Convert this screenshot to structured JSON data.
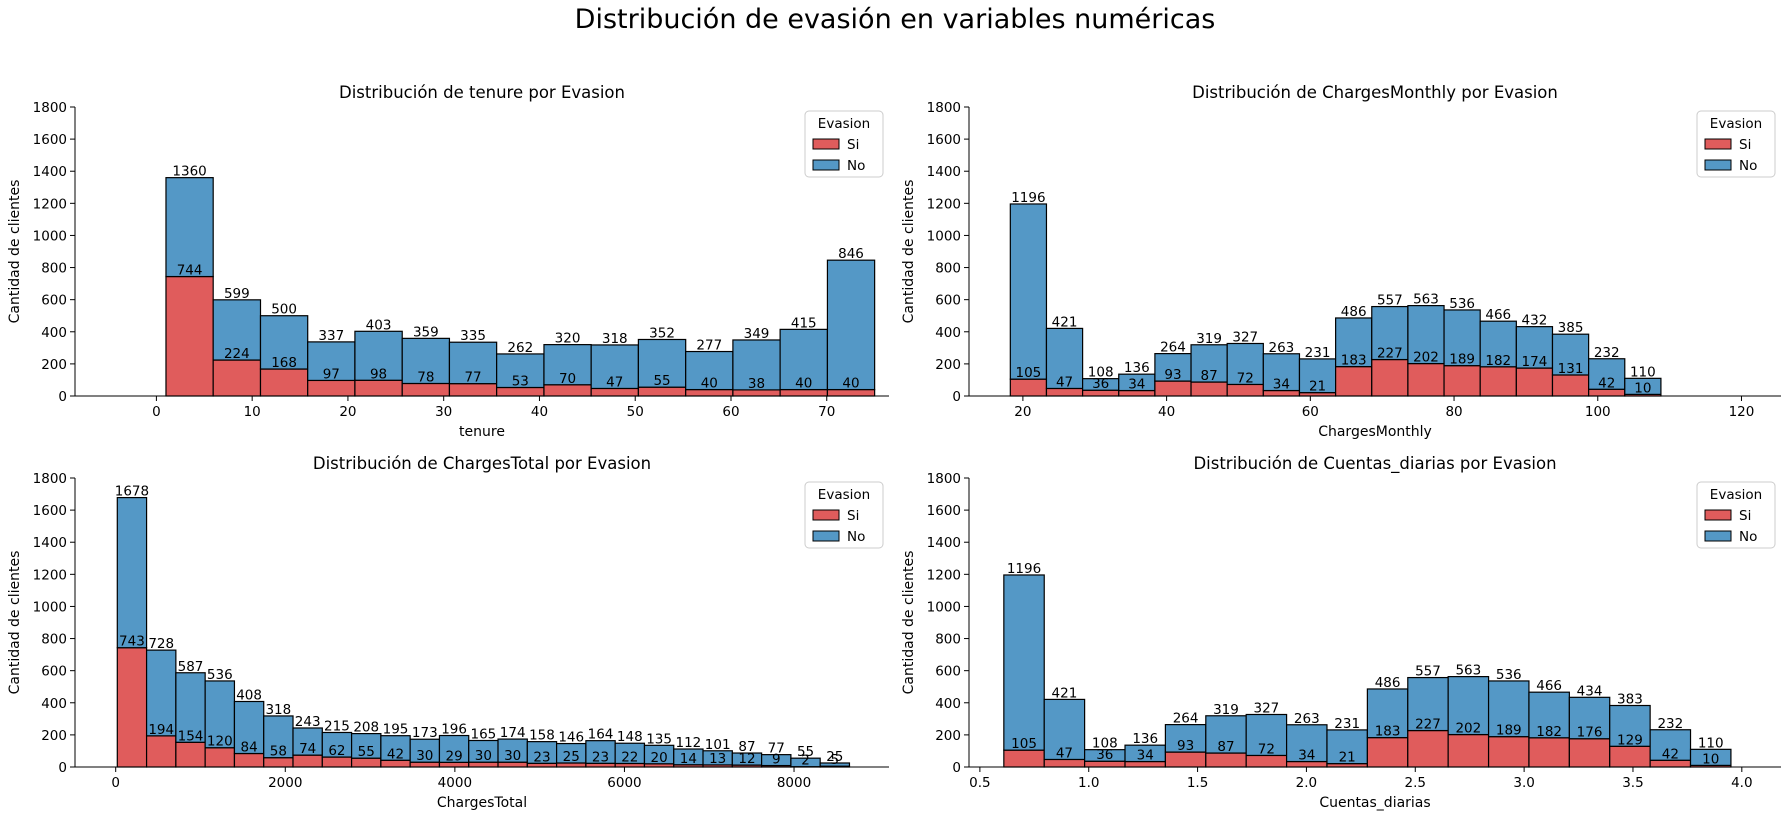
{
  "suptitle": "Distribución de evasión en variables numéricas",
  "colors": {
    "si": "#e05c5c",
    "no": "#5498c6",
    "edge": "#000000"
  },
  "chart_data": [
    {
      "type": "bar",
      "title": "Distribución de tenure por Evasion",
      "xlabel": "tenure",
      "ylabel": "Cantidad de clientes",
      "xlim": [
        -8.5,
        76.5
      ],
      "ylim": [
        0,
        1800
      ],
      "xticks": [
        0,
        10,
        20,
        30,
        40,
        50,
        60,
        70
      ],
      "yticks": [
        0,
        200,
        400,
        600,
        800,
        1000,
        1200,
        1400,
        1600,
        1800
      ],
      "legend": {
        "title": "Evasion",
        "entries": [
          "Si",
          "No"
        ],
        "placement": "top-right"
      },
      "bin_edges": [
        1,
        5.93,
        10.87,
        15.8,
        20.73,
        25.67,
        30.6,
        35.53,
        40.47,
        45.4,
        50.33,
        55.27,
        60.2,
        65.13,
        70.07,
        75
      ],
      "series": [
        {
          "name": "Si",
          "values": [
            744,
            224,
            168,
            97,
            98,
            78,
            77,
            53,
            70,
            47,
            55,
            40,
            38,
            40,
            40
          ]
        },
        {
          "name": "No",
          "values": [
            616,
            375,
            332,
            240,
            305,
            281,
            258,
            209,
            250,
            271,
            297,
            237,
            311,
            375,
            806
          ]
        }
      ],
      "totals": [
        1360,
        599,
        500,
        337,
        403,
        359,
        335,
        262,
        320,
        318,
        352,
        277,
        349,
        415,
        846
      ],
      "labels_si": [
        "744",
        "224",
        "168",
        "97",
        "98",
        "78",
        "77",
        "53",
        "70",
        "47",
        "55",
        "40",
        "38",
        "40",
        "40"
      ],
      "labels_total": [
        "1360",
        "599",
        "500",
        "337",
        "403",
        "359",
        "335",
        "262",
        "320",
        "318",
        "352",
        "277",
        "349",
        "415",
        "846"
      ]
    },
    {
      "type": "bar",
      "title": "Distribución de ChargesMonthly por Evasion",
      "xlabel": "ChargesMonthly",
      "ylabel": "Cantidad de clientes",
      "xlim": [
        12.5,
        125.5
      ],
      "ylim": [
        0,
        1800
      ],
      "xticks": [
        20,
        40,
        60,
        80,
        100,
        120
      ],
      "yticks": [
        0,
        200,
        400,
        600,
        800,
        1000,
        1200,
        1400,
        1600,
        1800
      ],
      "legend": {
        "title": "Evasion",
        "entries": [
          "Si",
          "No"
        ],
        "placement": "top-right"
      },
      "bin_edges": [
        18.25,
        23.28,
        28.31,
        33.34,
        38.37,
        43.4,
        48.43,
        53.46,
        58.49,
        63.52,
        68.55,
        73.58,
        78.61,
        83.64,
        88.67,
        93.7,
        98.73,
        103.76,
        108.79,
        113.82,
        118.75
      ],
      "series": [
        {
          "name": "Si",
          "values": [
            105,
            47,
            36,
            34,
            93,
            87,
            72,
            34,
            21,
            183,
            227,
            202,
            189,
            182,
            174,
            131,
            42,
            10
          ]
        },
        {
          "name": "No",
          "values": [
            1091,
            374,
            72,
            102,
            171,
            232,
            255,
            229,
            210,
            303,
            330,
            361,
            347,
            284,
            258,
            254,
            190,
            100
          ]
        }
      ],
      "totals": [
        1196,
        421,
        108,
        136,
        264,
        319,
        327,
        263,
        231,
        486,
        557,
        563,
        536,
        466,
        432,
        385,
        232,
        110
      ],
      "labels_si": [
        "105",
        "47",
        "36",
        "34",
        "93",
        "87",
        "72",
        "34",
        "21",
        "183",
        "227",
        "202",
        "189",
        "182",
        "174",
        "131",
        "42",
        "10"
      ],
      "labels_total": [
        "1196",
        "421",
        "108",
        "136",
        "264",
        "319",
        "327",
        "263",
        "231",
        "486",
        "557",
        "563",
        "536",
        "466",
        "432",
        "385",
        "232",
        "110"
      ]
    },
    {
      "type": "bar",
      "title": "Distribución de ChargesTotal por Evasion",
      "xlabel": "ChargesTotal",
      "ylabel": "Cantidad de clientes",
      "xlim": [
        -480,
        9120
      ],
      "ylim": [
        0,
        1800
      ],
      "xticks": [
        0,
        2000,
        4000,
        6000,
        8000
      ],
      "yticks": [
        0,
        200,
        400,
        600,
        800,
        1000,
        1200,
        1400,
        1600,
        1800
      ],
      "legend": {
        "title": "Evasion",
        "entries": [
          "Si",
          "No"
        ],
        "placement": "top-right"
      },
      "bin_edges": [
        18.8,
        364.2,
        709.6,
        1055,
        1400.4,
        1745.8,
        2091.2,
        2436.6,
        2782,
        3127.4,
        3472.8,
        3818.2,
        4163.6,
        4509,
        4854.4,
        5199.8,
        5545.2,
        5890.6,
        6236,
        6581.4,
        6926.8,
        7272.2,
        7617.6,
        7963,
        8308.4,
        8653.8
      ],
      "series": [
        {
          "name": "Si",
          "values": [
            743,
            194,
            154,
            120,
            84,
            58,
            74,
            62,
            55,
            42,
            30,
            29,
            30,
            30,
            23,
            25,
            23,
            22,
            20,
            14,
            13,
            12,
            9,
            2,
            5
          ]
        },
        {
          "name": "No",
          "values": [
            935,
            534,
            433,
            416,
            324,
            260,
            169,
            153,
            153,
            153,
            143,
            167,
            135,
            144,
            135,
            121,
            141,
            126,
            115,
            98,
            88,
            75,
            68,
            53,
            20
          ]
        }
      ],
      "totals": [
        1678,
        728,
        587,
        536,
        408,
        318,
        243,
        215,
        208,
        195,
        173,
        196,
        165,
        174,
        158,
        146,
        164,
        148,
        135,
        112,
        101,
        87,
        77,
        55,
        25
      ],
      "labels_si": [
        "743",
        "194",
        "154",
        "120",
        "84",
        "58",
        "74",
        "62",
        "55",
        "42",
        "30",
        "29",
        "30",
        "30",
        "23",
        "25",
        "23",
        "22",
        "20",
        "14",
        "13",
        "12",
        "9",
        "2",
        "5"
      ],
      "labels_total": [
        "1678",
        "728",
        "587",
        "536",
        "408",
        "318",
        "243",
        "215",
        "208",
        "195",
        "173",
        "196",
        "165",
        "174",
        "158",
        "146",
        "164",
        "148",
        "135",
        "112",
        "101",
        "87",
        "77",
        "55",
        "25"
      ]
    },
    {
      "type": "bar",
      "title": "Distribución de Cuentas_diarias por Evasion",
      "xlabel": "Cuentas_diarias",
      "ylabel": "Cantidad de clientes",
      "xlim": [
        0.45,
        4.18
      ],
      "ylim": [
        0,
        1800
      ],
      "xticks": [
        0.5,
        1.0,
        1.5,
        2.0,
        2.5,
        3.0,
        3.5,
        4.0
      ],
      "xtick_labels": [
        "0.5",
        "1.0",
        "1.5",
        "2.0",
        "2.5",
        "3.0",
        "3.5",
        "4.0"
      ],
      "yticks": [
        0,
        200,
        400,
        600,
        800,
        1000,
        1200,
        1400,
        1600,
        1800
      ],
      "legend": {
        "title": "Evasion",
        "entries": [
          "Si",
          "No"
        ],
        "placement": "top-right"
      },
      "bin_edges": [
        0.61,
        0.7956,
        0.9811,
        1.1667,
        1.3522,
        1.5378,
        1.7233,
        1.9089,
        2.0944,
        2.28,
        2.4656,
        2.6511,
        2.8367,
        3.0222,
        3.2078,
        3.3933,
        3.5789,
        3.7644,
        3.95
      ],
      "series": [
        {
          "name": "Si",
          "values": [
            105,
            47,
            36,
            34,
            93,
            87,
            72,
            34,
            21,
            183,
            227,
            202,
            189,
            182,
            176,
            129,
            42,
            10
          ]
        },
        {
          "name": "No",
          "values": [
            1091,
            374,
            72,
            102,
            171,
            232,
            255,
            229,
            210,
            303,
            330,
            361,
            347,
            284,
            258,
            254,
            190,
            100
          ]
        }
      ],
      "totals": [
        1196,
        421,
        108,
        136,
        264,
        319,
        327,
        263,
        231,
        486,
        557,
        563,
        536,
        466,
        434,
        383,
        232,
        110
      ],
      "labels_si": [
        "105",
        "47",
        "36",
        "34",
        "93",
        "87",
        "72",
        "34",
        "21",
        "183",
        "227",
        "202",
        "189",
        "182",
        "176",
        "129",
        "42",
        "10"
      ],
      "labels_total": [
        "1196",
        "421",
        "108",
        "136",
        "264",
        "319",
        "327",
        "263",
        "231",
        "486",
        "557",
        "563",
        "536",
        "466",
        "434",
        "383",
        "232",
        "110"
      ]
    }
  ]
}
